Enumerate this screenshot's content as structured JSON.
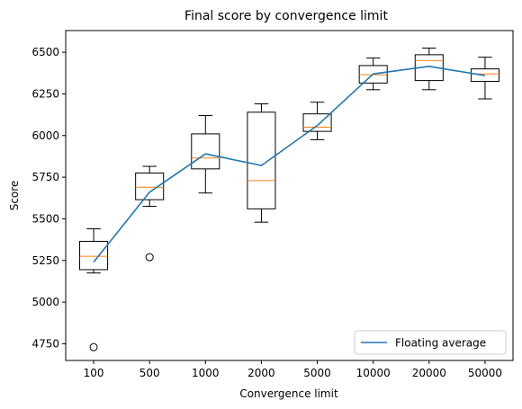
{
  "chart_data": {
    "type": "box",
    "title": "Final score by convergence limit",
    "xlabel": "Convergence limit",
    "ylabel": "Score",
    "ylim": [
      4650,
      6630
    ],
    "yticks": [
      4750,
      5000,
      5250,
      5500,
      5750,
      6000,
      6250,
      6500
    ],
    "categories": [
      "100",
      "500",
      "1000",
      "2000",
      "5000",
      "10000",
      "20000",
      "50000"
    ],
    "boxes": [
      {
        "category": "100",
        "whislo": 5175,
        "q1": 5195,
        "med": 5275,
        "q3": 5365,
        "whishi": 5440,
        "fliers": [
          4730
        ]
      },
      {
        "category": "500",
        "whislo": 5575,
        "q1": 5615,
        "med": 5690,
        "q3": 5775,
        "whishi": 5815,
        "fliers": [
          5270
        ]
      },
      {
        "category": "1000",
        "whislo": 5655,
        "q1": 5800,
        "med": 5865,
        "q3": 6010,
        "whishi": 6120,
        "fliers": []
      },
      {
        "category": "2000",
        "whislo": 5480,
        "q1": 5560,
        "med": 5730,
        "q3": 6140,
        "whishi": 6190,
        "fliers": []
      },
      {
        "category": "5000",
        "whislo": 5975,
        "q1": 6025,
        "med": 6050,
        "q3": 6130,
        "whishi": 6200,
        "fliers": []
      },
      {
        "category": "10000",
        "whislo": 6275,
        "q1": 6315,
        "med": 6365,
        "q3": 6420,
        "whishi": 6465,
        "fliers": []
      },
      {
        "category": "20000",
        "whislo": 6275,
        "q1": 6330,
        "med": 6450,
        "q3": 6485,
        "whishi": 6525,
        "fliers": []
      },
      {
        "category": "50000",
        "whislo": 6220,
        "q1": 6325,
        "med": 6370,
        "q3": 6400,
        "whishi": 6470,
        "fliers": []
      }
    ],
    "series": [
      {
        "name": "Floating average",
        "values": [
          5240,
          5660,
          5890,
          5820,
          6060,
          6370,
          6415,
          6360
        ]
      }
    ],
    "grid": false,
    "legend_position": "lower right",
    "colors": {
      "box": "#000000",
      "median": "#ff7f0e",
      "line": "#1f77b4"
    }
  }
}
